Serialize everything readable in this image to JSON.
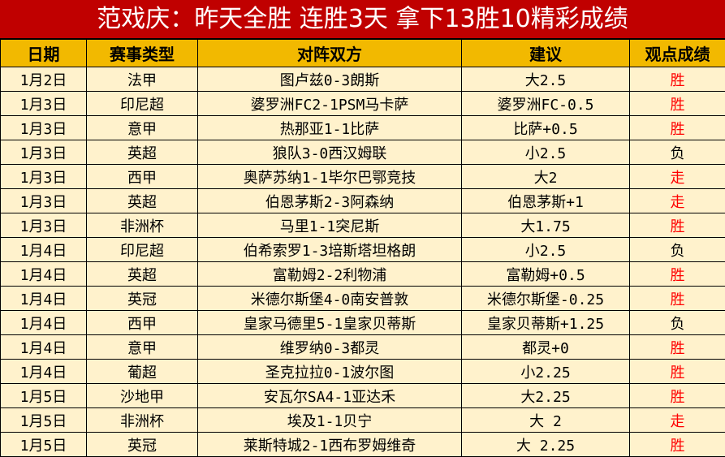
{
  "title": "范戏庆：昨天全胜 连胜3天 拿下13胜10精彩成绩",
  "colors": {
    "title_bg": "#c00000",
    "header_bg": "#f2b900",
    "row_bg": "#fff2cc",
    "win": "#ff0000",
    "push": "#ff0000",
    "loss": "#000000"
  },
  "columns": [
    "日期",
    "赛事类型",
    "对阵双方",
    "建议",
    "观点成绩"
  ],
  "rows": [
    {
      "date": "1月2日",
      "league": "法甲",
      "match": "图卢兹0-3朗斯",
      "tip": "大2.5",
      "result": "胜"
    },
    {
      "date": "1月3日",
      "league": "印尼超",
      "match": "婆罗洲FC2-1PSM马卡萨",
      "tip": "婆罗洲FC-0.5",
      "result": "胜"
    },
    {
      "date": "1月3日",
      "league": "意甲",
      "match": "热那亚1-1比萨",
      "tip": "比萨+0.5",
      "result": "胜"
    },
    {
      "date": "1月3日",
      "league": "英超",
      "match": "狼队3-0西汉姆联",
      "tip": "小2.5",
      "result": "负"
    },
    {
      "date": "1月3日",
      "league": "西甲",
      "match": "奥萨苏纳1-1毕尔巴鄂竞技",
      "tip": "大2",
      "result": "走"
    },
    {
      "date": "1月3日",
      "league": "英超",
      "match": "伯恩茅斯2-3阿森纳",
      "tip": "伯恩茅斯+1",
      "result": "走"
    },
    {
      "date": "1月3日",
      "league": "非洲杯",
      "match": "马里1-1突尼斯",
      "tip": "大1.75",
      "result": "胜"
    },
    {
      "date": "1月4日",
      "league": "印尼超",
      "match": "伯希索罗1-3培斯塔坦格朗",
      "tip": "小2.5",
      "result": "负"
    },
    {
      "date": "1月4日",
      "league": "英超",
      "match": "富勒姆2-2利物浦",
      "tip": "富勒姆+0.5",
      "result": "胜"
    },
    {
      "date": "1月4日",
      "league": "英冠",
      "match": "米德尔斯堡4-0南安普敦",
      "tip": "米德尔斯堡-0.25",
      "result": "胜"
    },
    {
      "date": "1月4日",
      "league": "西甲",
      "match": "皇家马德里5-1皇家贝蒂斯",
      "tip": "皇家贝蒂斯+1.25",
      "result": "负"
    },
    {
      "date": "1月4日",
      "league": "意甲",
      "match": "维罗纳0-3都灵",
      "tip": "都灵+0",
      "result": "胜"
    },
    {
      "date": "1月4日",
      "league": "葡超",
      "match": "圣克拉拉0-1波尔图",
      "tip": "小2.25",
      "result": "胜"
    },
    {
      "date": "1月5日",
      "league": "沙地甲",
      "match": "安瓦尔SA4-1亚达禾",
      "tip": "大2.25",
      "result": "胜"
    },
    {
      "date": "1月5日",
      "league": "非洲杯",
      "match": "埃及1-1贝宁",
      "tip": "大 2",
      "result": "走"
    },
    {
      "date": "1月5日",
      "league": "英冠",
      "match": "莱斯特城2-1西布罗姆维奇",
      "tip": "大 2.25",
      "result": "胜"
    }
  ]
}
